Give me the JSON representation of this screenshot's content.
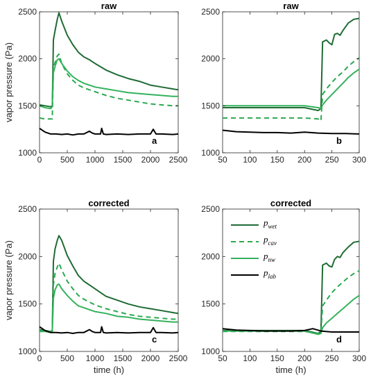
{
  "figure": {
    "legend": [
      {
        "key": "p_wet",
        "base": "p",
        "sub": "wet",
        "color": "#1e6b34",
        "dash": false
      },
      {
        "key": "p_cav",
        "base": "p",
        "sub": "cav",
        "color": "#2aa84f",
        "dash": true
      },
      {
        "key": "p_nw",
        "base": "p",
        "sub": "nw",
        "color": "#33b25c",
        "dash": false
      },
      {
        "key": "p_lab",
        "base": "p",
        "sub": "lab",
        "color": "#000000",
        "dash": false
      }
    ]
  },
  "chart_data": [
    {
      "type": "line",
      "panel": "a",
      "title": "raw",
      "xlabel": "",
      "ylabel": "vapor pressure (Pa)",
      "xlim": [
        0,
        2500
      ],
      "ylim": [
        1000,
        2500
      ],
      "xticks": [
        0,
        500,
        1000,
        1500,
        2000,
        2500
      ],
      "yticks": [
        1000,
        1500,
        2000,
        2500
      ],
      "series": [
        {
          "name": "p_wet",
          "x": [
            0,
            100,
            200,
            230,
            250,
            280,
            320,
            350,
            400,
            500,
            600,
            700,
            800,
            900,
            1000,
            1200,
            1400,
            1600,
            1800,
            2000,
            2200,
            2400,
            2500
          ],
          "y": [
            1510,
            1500,
            1490,
            1500,
            2200,
            2300,
            2420,
            2490,
            2400,
            2250,
            2150,
            2070,
            2020,
            1990,
            1950,
            1880,
            1830,
            1790,
            1760,
            1720,
            1700,
            1680,
            1670
          ]
        },
        {
          "name": "p_cav",
          "x": [
            0,
            100,
            200,
            230,
            250,
            280,
            320,
            350,
            400,
            500,
            600,
            700,
            800,
            900,
            1000,
            1200,
            1400,
            1600,
            1800,
            2000,
            2200,
            2400,
            2500
          ],
          "y": [
            1370,
            1360,
            1360,
            1360,
            1900,
            1960,
            2030,
            2050,
            1950,
            1840,
            1770,
            1720,
            1690,
            1670,
            1650,
            1610,
            1580,
            1560,
            1540,
            1520,
            1510,
            1500,
            1500
          ]
        },
        {
          "name": "p_nw",
          "x": [
            0,
            100,
            200,
            230,
            250,
            280,
            320,
            350,
            400,
            500,
            600,
            700,
            800,
            900,
            1000,
            1200,
            1400,
            1600,
            1800,
            2000,
            2200,
            2400,
            2500
          ],
          "y": [
            1500,
            1480,
            1470,
            1490,
            1850,
            1920,
            1990,
            2000,
            1950,
            1870,
            1810,
            1770,
            1740,
            1720,
            1700,
            1680,
            1660,
            1640,
            1630,
            1620,
            1610,
            1600,
            1600
          ]
        },
        {
          "name": "p_lab",
          "x": [
            0,
            100,
            200,
            300,
            400,
            500,
            600,
            700,
            800,
            900,
            950,
            1000,
            1100,
            1120,
            1150,
            1200,
            1400,
            1600,
            1800,
            2000,
            2050,
            2100,
            2200,
            2400,
            2500
          ],
          "y": [
            1260,
            1220,
            1200,
            1200,
            1195,
            1200,
            1190,
            1200,
            1200,
            1230,
            1210,
            1200,
            1200,
            1260,
            1200,
            1195,
            1200,
            1195,
            1200,
            1200,
            1250,
            1200,
            1200,
            1195,
            1200
          ]
        }
      ]
    },
    {
      "type": "line",
      "panel": "b",
      "title": "raw",
      "xlabel": "",
      "ylabel": "",
      "xlim": [
        50,
        300
      ],
      "ylim": [
        1000,
        2500
      ],
      "xticks": [
        50,
        100,
        150,
        200,
        250,
        300
      ],
      "yticks": [
        1000,
        1500,
        2000,
        2500
      ],
      "series": [
        {
          "name": "p_wet",
          "x": [
            50,
            100,
            150,
            200,
            225,
            230,
            233,
            240,
            245,
            250,
            255,
            260,
            265,
            270,
            280,
            290,
            300
          ],
          "y": [
            1480,
            1480,
            1480,
            1480,
            1450,
            1470,
            2180,
            2200,
            2170,
            2150,
            2260,
            2270,
            2250,
            2300,
            2380,
            2420,
            2430
          ]
        },
        {
          "name": "p_cav",
          "x": [
            50,
            100,
            150,
            200,
            225,
            230,
            233,
            240,
            250,
            260,
            270,
            280,
            290,
            300
          ],
          "y": [
            1370,
            1370,
            1370,
            1370,
            1360,
            1340,
            1620,
            1680,
            1750,
            1810,
            1860,
            1920,
            1970,
            2010
          ]
        },
        {
          "name": "p_nw",
          "x": [
            50,
            100,
            150,
            200,
            225,
            230,
            233,
            240,
            250,
            260,
            270,
            280,
            290,
            300
          ],
          "y": [
            1500,
            1500,
            1500,
            1500,
            1480,
            1470,
            1510,
            1560,
            1620,
            1680,
            1740,
            1800,
            1850,
            1890
          ]
        },
        {
          "name": "p_lab",
          "x": [
            50,
            75,
            100,
            125,
            150,
            175,
            200,
            225,
            250,
            275,
            300
          ],
          "y": [
            1240,
            1225,
            1220,
            1215,
            1215,
            1210,
            1220,
            1210,
            1205,
            1205,
            1200
          ]
        }
      ]
    },
    {
      "type": "line",
      "panel": "c",
      "title": "corrected",
      "xlabel": "time (h)",
      "ylabel": "vapor pressure (Pa)",
      "xlim": [
        0,
        2500
      ],
      "ylim": [
        1000,
        2500
      ],
      "xticks": [
        0,
        500,
        1000,
        1500,
        2000,
        2500
      ],
      "yticks": [
        1000,
        1500,
        2000,
        2500
      ],
      "series": [
        {
          "name": "p_wet",
          "x": [
            0,
            100,
            200,
            230,
            250,
            280,
            320,
            350,
            400,
            500,
            600,
            700,
            800,
            900,
            1000,
            1200,
            1400,
            1600,
            1800,
            2000,
            2200,
            2400,
            2500
          ],
          "y": [
            1230,
            1220,
            1210,
            1220,
            1950,
            2080,
            2170,
            2220,
            2170,
            2010,
            1900,
            1800,
            1740,
            1700,
            1660,
            1580,
            1540,
            1500,
            1470,
            1450,
            1430,
            1410,
            1400
          ]
        },
        {
          "name": "p_cav",
          "x": [
            0,
            100,
            200,
            230,
            250,
            280,
            320,
            350,
            400,
            500,
            600,
            700,
            800,
            900,
            1000,
            1200,
            1400,
            1600,
            1800,
            2000,
            2200,
            2400,
            2500
          ],
          "y": [
            1210,
            1210,
            1210,
            1210,
            1700,
            1820,
            1890,
            1930,
            1860,
            1740,
            1660,
            1590,
            1550,
            1520,
            1490,
            1450,
            1420,
            1390,
            1370,
            1360,
            1350,
            1340,
            1340
          ]
        },
        {
          "name": "p_nw",
          "x": [
            0,
            100,
            200,
            230,
            250,
            280,
            320,
            350,
            400,
            500,
            600,
            700,
            800,
            900,
            1000,
            1200,
            1400,
            1600,
            1800,
            2000,
            2200,
            2400,
            2500
          ],
          "y": [
            1220,
            1210,
            1200,
            1210,
            1560,
            1650,
            1700,
            1710,
            1660,
            1590,
            1530,
            1480,
            1460,
            1440,
            1420,
            1400,
            1370,
            1360,
            1340,
            1330,
            1320,
            1310,
            1310
          ]
        },
        {
          "name": "p_lab",
          "x": [
            0,
            100,
            200,
            300,
            400,
            500,
            600,
            700,
            800,
            900,
            950,
            1000,
            1100,
            1120,
            1150,
            1200,
            1400,
            1600,
            1800,
            2000,
            2050,
            2100,
            2200,
            2400,
            2500
          ],
          "y": [
            1260,
            1220,
            1200,
            1200,
            1195,
            1200,
            1190,
            1200,
            1200,
            1230,
            1210,
            1200,
            1200,
            1260,
            1200,
            1195,
            1200,
            1195,
            1200,
            1200,
            1250,
            1200,
            1200,
            1195,
            1200
          ]
        }
      ]
    },
    {
      "type": "line",
      "panel": "d",
      "title": "corrected",
      "xlabel": "time (h)",
      "ylabel": "",
      "xlim": [
        50,
        300
      ],
      "ylim": [
        1000,
        2500
      ],
      "xticks": [
        50,
        100,
        150,
        200,
        250,
        300
      ],
      "yticks": [
        1000,
        1500,
        2000,
        2500
      ],
      "series": [
        {
          "name": "p_wet",
          "x": [
            50,
            100,
            150,
            200,
            225,
            230,
            233,
            240,
            245,
            250,
            255,
            260,
            265,
            270,
            280,
            290,
            300
          ],
          "y": [
            1220,
            1220,
            1220,
            1220,
            1190,
            1210,
            1910,
            1930,
            1900,
            1890,
            1970,
            2000,
            1990,
            2040,
            2100,
            2150,
            2160
          ]
        },
        {
          "name": "p_cav",
          "x": [
            50,
            100,
            150,
            200,
            225,
            230,
            233,
            240,
            250,
            260,
            270,
            280,
            290,
            300
          ],
          "y": [
            1210,
            1210,
            1210,
            1210,
            1190,
            1200,
            1480,
            1540,
            1620,
            1680,
            1730,
            1780,
            1820,
            1850
          ]
        },
        {
          "name": "p_nw",
          "x": [
            50,
            100,
            150,
            200,
            225,
            230,
            233,
            240,
            250,
            260,
            270,
            280,
            290,
            300
          ],
          "y": [
            1215,
            1215,
            1215,
            1215,
            1180,
            1190,
            1250,
            1300,
            1350,
            1400,
            1450,
            1500,
            1550,
            1590
          ]
        },
        {
          "name": "p_lab",
          "x": [
            50,
            75,
            100,
            125,
            150,
            175,
            200,
            215,
            230,
            250,
            275,
            300
          ],
          "y": [
            1240,
            1225,
            1220,
            1215,
            1215,
            1215,
            1220,
            1240,
            1215,
            1205,
            1205,
            1205
          ]
        }
      ]
    }
  ]
}
